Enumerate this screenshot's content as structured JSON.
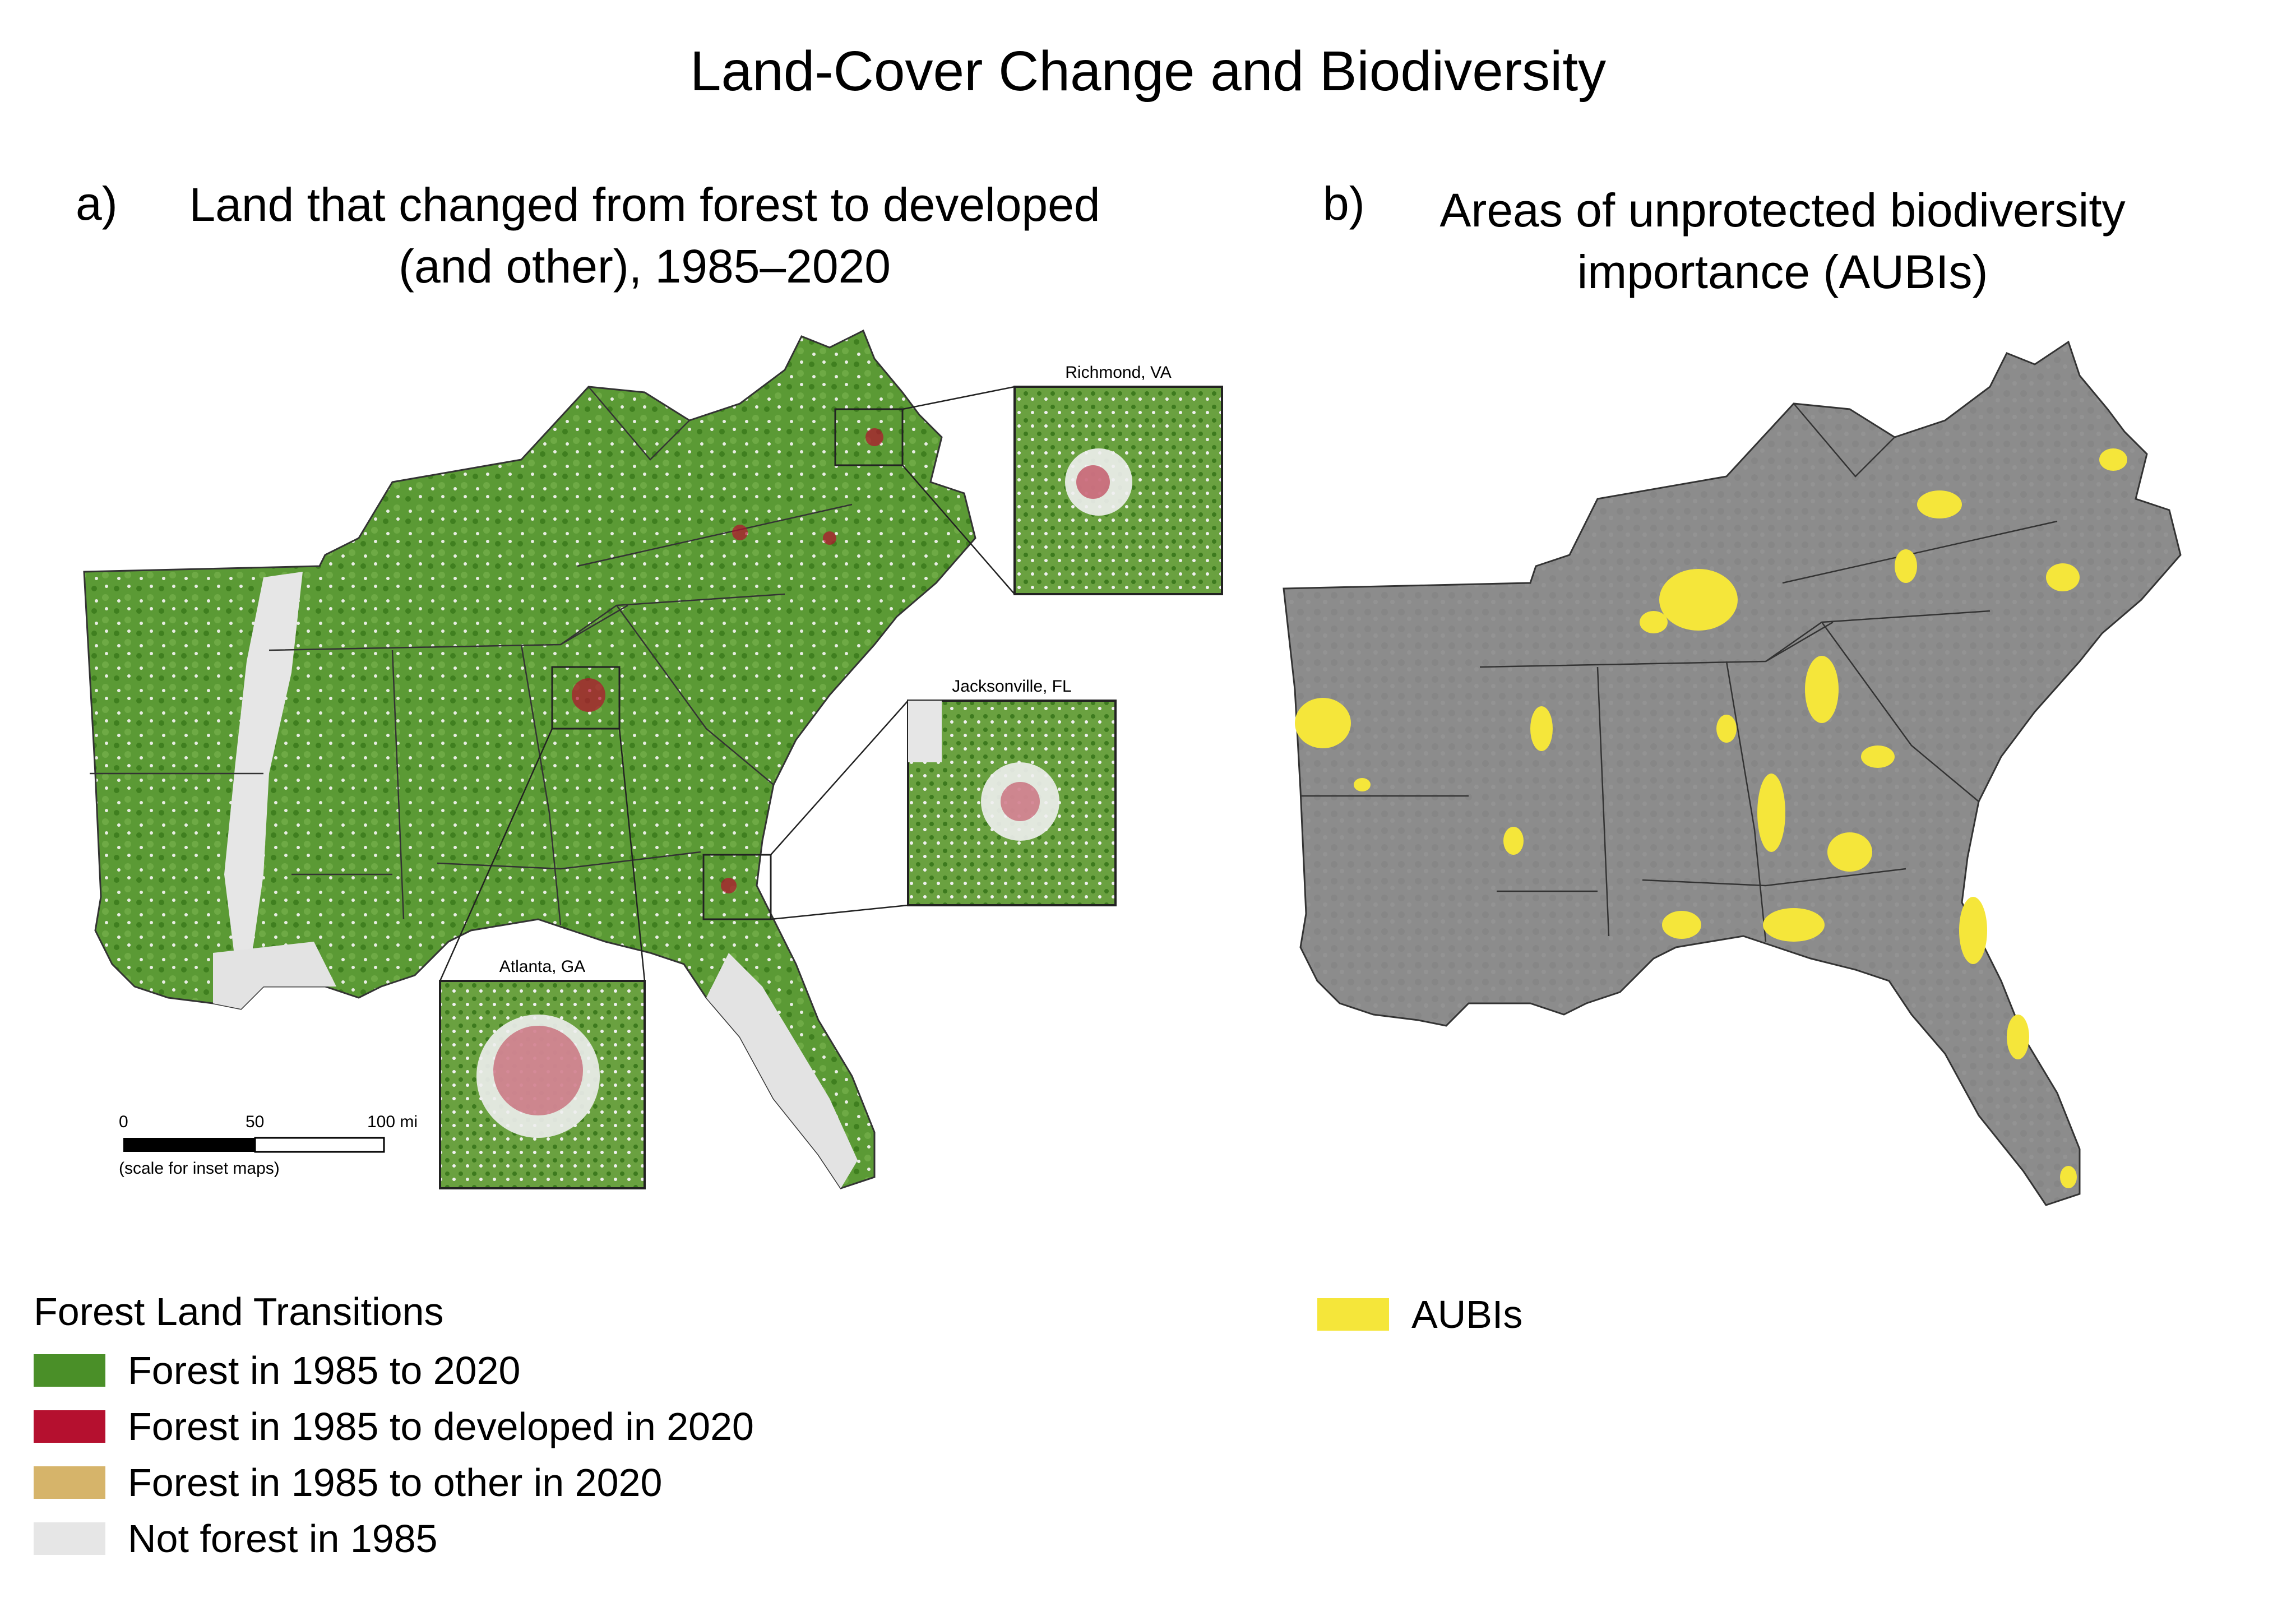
{
  "title": "Land-Cover Change and Biodiversity",
  "panel_a": {
    "letter": "a)",
    "title_line1": "Land that changed from forest to developed",
    "title_line2": "(and other), 1985–2020",
    "insets": {
      "richmond": "Richmond, VA",
      "jacksonville": "Jacksonville, FL",
      "atlanta": "Atlanta, GA"
    },
    "scale": {
      "tick_0": "0",
      "tick_50": "50",
      "tick_100": "100 mi",
      "note": "(scale for inset maps)"
    },
    "colors": {
      "forest": "#4a8f28",
      "developed": "#b5102f",
      "other": "#d6b46a",
      "not_forest": "#e6e6e6"
    }
  },
  "panel_b": {
    "letter": "b)",
    "title_line1": "Areas of unprotected biodiversity",
    "title_line2": "importance (AUBIs)",
    "colors": {
      "land": "#8c8c8c",
      "aubi": "#f5e63a"
    }
  },
  "legend_a": {
    "title": "Forest Land Transitions",
    "items": [
      {
        "label": "Forest in 1985 to 2020",
        "color": "#4a8f28"
      },
      {
        "label": "Forest in 1985 to developed in 2020",
        "color": "#b5102f"
      },
      {
        "label": "Forest in 1985 to other in 2020",
        "color": "#d6b46a"
      },
      {
        "label": "Not forest in 1985",
        "color": "#e6e6e6"
      }
    ]
  },
  "legend_b": {
    "items": [
      {
        "label": "AUBIs",
        "color": "#f5e63a"
      }
    ]
  }
}
